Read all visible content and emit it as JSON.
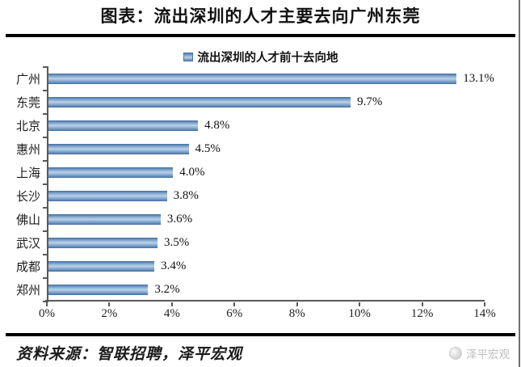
{
  "header": {
    "title": "图表：流出深圳的人才主要去向广州东莞"
  },
  "chart_data": {
    "type": "bar",
    "orientation": "horizontal",
    "title": "流出深圳的人才前十去向地",
    "legend": [
      "流出深圳的人才前十去向地"
    ],
    "legend_position": "top",
    "categories": [
      "广州",
      "东莞",
      "北京",
      "惠州",
      "上海",
      "长沙",
      "佛山",
      "武汉",
      "成都",
      "郑州"
    ],
    "values": [
      13.1,
      9.7,
      4.8,
      4.5,
      4.0,
      3.8,
      3.6,
      3.5,
      3.4,
      3.2
    ],
    "value_labels": [
      "13.1%",
      "9.7%",
      "4.8%",
      "4.5%",
      "4.0%",
      "3.8%",
      "3.6%",
      "3.5%",
      "3.4%",
      "3.2%"
    ],
    "xlabel": "",
    "ylabel": "",
    "xlim": [
      0,
      14
    ],
    "x_ticks": [
      "0%",
      "2%",
      "4%",
      "6%",
      "8%",
      "10%",
      "12%",
      "14%"
    ],
    "grid": false
  },
  "footer": {
    "source": "资料来源：智联招聘，泽平宏观",
    "watermark": "泽平宏观"
  },
  "colors": {
    "bar_edge": "#5580ae",
    "bar_mid": "#86aad1",
    "bar_light": "#bad1e8",
    "bar_border": "#4a76a6",
    "axis": "#595959",
    "rule": "#000000",
    "watermark_gray": "#bdbdbd"
  }
}
